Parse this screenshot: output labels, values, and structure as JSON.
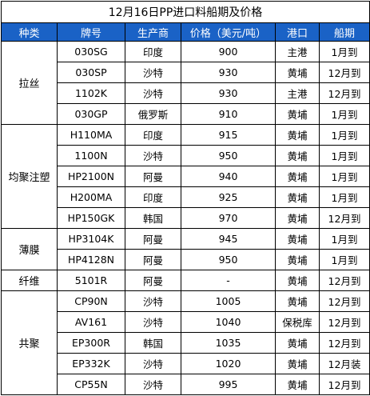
{
  "title": "12月16日PP进口料船期及价格",
  "headers": {
    "category": "种类",
    "grade": "牌号",
    "producer": "生产商",
    "price": "价格（美元/吨）",
    "port": "港口",
    "shipment": "船期"
  },
  "groups": [
    {
      "name": "拉丝",
      "rows": [
        {
          "grade": "030SG",
          "producer": "印度",
          "price": "900",
          "port": "主港",
          "shipment": "1月到"
        },
        {
          "grade": "030SP",
          "producer": "沙特",
          "price": "930",
          "port": "黄埔",
          "shipment": "12月到"
        },
        {
          "grade": "1102K",
          "producer": "沙特",
          "price": "930",
          "port": "主港",
          "shipment": "12月到"
        },
        {
          "grade": "030GP",
          "producer": "俄罗斯",
          "price": "910",
          "port": "黄埔",
          "shipment": "1月到"
        }
      ]
    },
    {
      "name": "均聚注塑",
      "rows": [
        {
          "grade": "H110MA",
          "producer": "印度",
          "price": "915",
          "port": "黄埔",
          "shipment": "1月到"
        },
        {
          "grade": "1100N",
          "producer": "沙特",
          "price": "950",
          "port": "黄埔",
          "shipment": "1月到"
        },
        {
          "grade": "HP2100N",
          "producer": "阿曼",
          "price": "940",
          "port": "黄埔",
          "shipment": "1月到"
        },
        {
          "grade": "H200MA",
          "producer": "印度",
          "price": "925",
          "port": "黄埔",
          "shipment": "1月到"
        },
        {
          "grade": "HP150GK",
          "producer": "韩国",
          "price": "970",
          "port": "黄埔",
          "shipment": "12月到"
        }
      ]
    },
    {
      "name": "薄膜",
      "rows": [
        {
          "grade": "HP3104K",
          "producer": "阿曼",
          "price": "945",
          "port": "黄埔",
          "shipment": "1月到"
        },
        {
          "grade": "HP4128N",
          "producer": "阿曼",
          "price": "950",
          "port": "黄埔",
          "shipment": "1月到"
        }
      ]
    },
    {
      "name": "纤维",
      "rows": [
        {
          "grade": "5101R",
          "producer": "阿曼",
          "price": "-",
          "port": "黄埔",
          "shipment": "12月到"
        }
      ]
    },
    {
      "name": "共聚",
      "rows": [
        {
          "grade": "CP90N",
          "producer": "沙特",
          "price": "1005",
          "port": "黄埔",
          "shipment": "12月到"
        },
        {
          "grade": "AV161",
          "producer": "沙特",
          "price": "1040",
          "port": "保税库",
          "shipment": "12月到"
        },
        {
          "grade": "EP300R",
          "producer": "韩国",
          "price": "1035",
          "port": "黄埔",
          "shipment": "12月到"
        },
        {
          "grade": "EP332K",
          "producer": "沙特",
          "price": "1020",
          "port": "黄埔",
          "shipment": "12月装"
        },
        {
          "grade": "CP55N",
          "producer": "沙特",
          "price": "995",
          "port": "黄埔",
          "shipment": "12月到"
        }
      ]
    }
  ]
}
